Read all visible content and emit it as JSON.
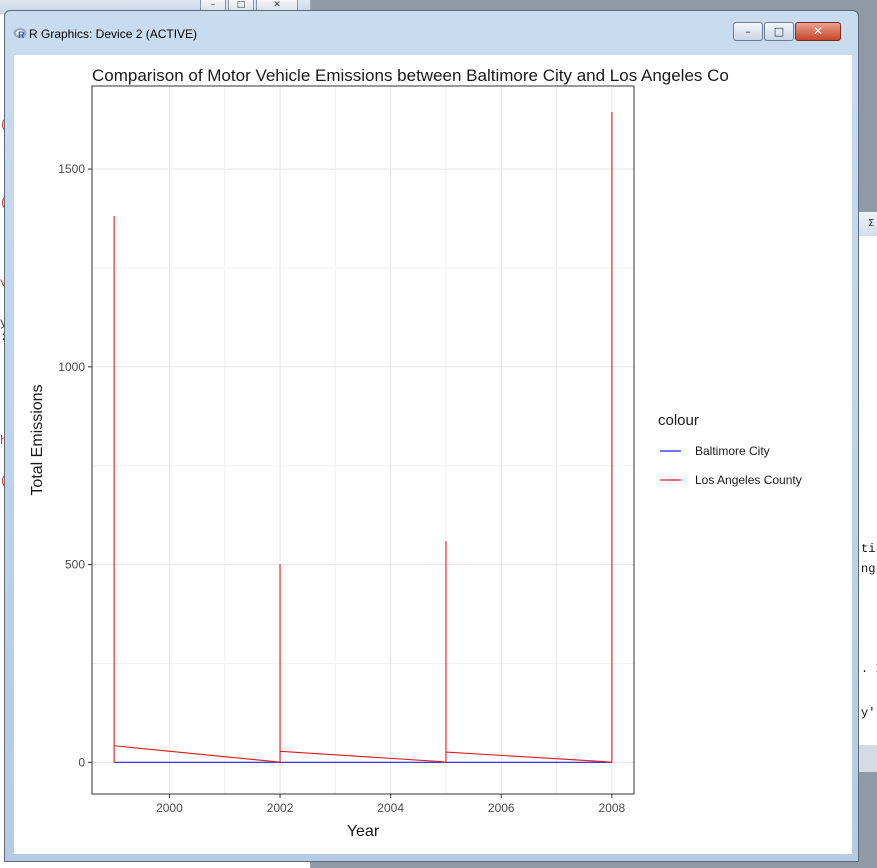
{
  "background": {
    "left_window": {
      "buttons": [
        "–",
        "□",
        "✕"
      ],
      "text_fragments": [
        "(",
        "(",
        "v",
        "y",
        ":",
        "h",
        "("
      ]
    },
    "right_window": {
      "caption_glyph": "Σ",
      "text_fragments": [
        "ti",
        "ng",
        ". I",
        "y'"
      ]
    }
  },
  "window": {
    "title": "R Graphics: Device 2 (ACTIVE)",
    "icon": "r-logo-icon",
    "controls": {
      "minimize": "–",
      "maximize": "□",
      "close": "✕"
    }
  },
  "chart_data": {
    "type": "line",
    "title": "Comparison of Motor Vehicle Emissions between Baltimore City and Los Angeles Co",
    "xlabel": "Year",
    "ylabel": "Total Emissions",
    "xlim": [
      1998.6,
      2008.4
    ],
    "ylim": [
      -80,
      1710
    ],
    "x_ticks": [
      2000,
      2002,
      2004,
      2006,
      2008
    ],
    "y_ticks": [
      0,
      500,
      1000,
      1500
    ],
    "grid": true,
    "legend": {
      "title": "colour",
      "position": "right"
    },
    "series": [
      {
        "name": "Baltimore City",
        "color": "#2222dd",
        "points": [
          [
            1999,
            0
          ],
          [
            2001.9,
            0
          ],
          [
            2002,
            0
          ],
          [
            2004.9,
            0
          ],
          [
            2005,
            0
          ],
          [
            2007.9,
            0
          ],
          [
            2008,
            0
          ]
        ]
      },
      {
        "name": "Los Angeles County",
        "color": "#e0191e",
        "points": [
          [
            1999,
            0
          ],
          [
            1999,
            1380
          ],
          [
            1999,
            42
          ],
          [
            2001.9,
            2
          ],
          [
            2002,
            0
          ],
          [
            2002,
            500
          ],
          [
            2002,
            28
          ],
          [
            2004.9,
            2
          ],
          [
            2005,
            0
          ],
          [
            2005,
            558
          ],
          [
            2005,
            26
          ],
          [
            2007.85,
            2
          ],
          [
            2008,
            0
          ],
          [
            2008,
            1643
          ],
          [
            2008,
            0
          ]
        ]
      }
    ]
  }
}
